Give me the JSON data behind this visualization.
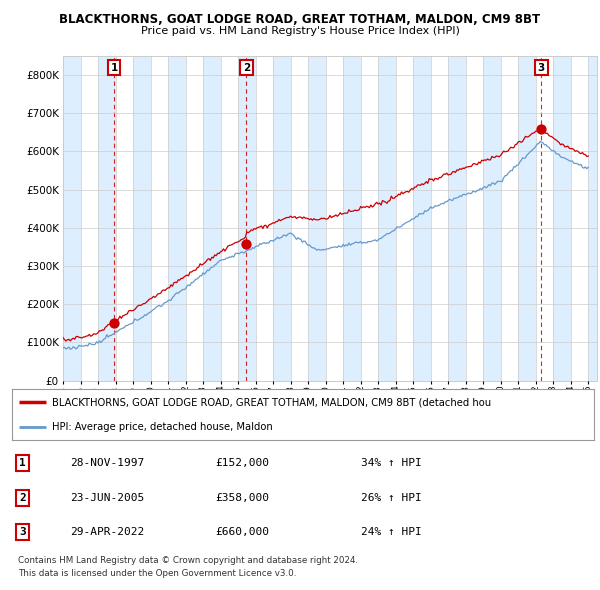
{
  "title": "BLACKTHORNS, GOAT LODGE ROAD, GREAT TOTHAM, MALDON, CM9 8BT",
  "subtitle": "Price paid vs. HM Land Registry's House Price Index (HPI)",
  "ylim": [
    0,
    850000
  ],
  "yticks": [
    0,
    100000,
    200000,
    300000,
    400000,
    500000,
    600000,
    700000,
    800000
  ],
  "sale_dates": [
    1997.91,
    2005.48,
    2022.32
  ],
  "sale_prices": [
    152000,
    358000,
    660000
  ],
  "sale_labels": [
    "1",
    "2",
    "3"
  ],
  "legend_line1": "BLACKTHORNS, GOAT LODGE ROAD, GREAT TOTHAM, MALDON, CM9 8BT (detached hou",
  "legend_line2": "HPI: Average price, detached house, Maldon",
  "table_rows": [
    [
      "1",
      "28-NOV-1997",
      "£152,000",
      "34% ↑ HPI"
    ],
    [
      "2",
      "23-JUN-2005",
      "£358,000",
      "26% ↑ HPI"
    ],
    [
      "3",
      "29-APR-2022",
      "£660,000",
      "24% ↑ HPI"
    ]
  ],
  "footnote1": "Contains HM Land Registry data © Crown copyright and database right 2024.",
  "footnote2": "This data is licensed under the Open Government Licence v3.0.",
  "red_color": "#cc0000",
  "blue_color": "#6699cc",
  "band_color": "#ddeeff",
  "background_color": "#ffffff",
  "grid_color": "#cccccc"
}
